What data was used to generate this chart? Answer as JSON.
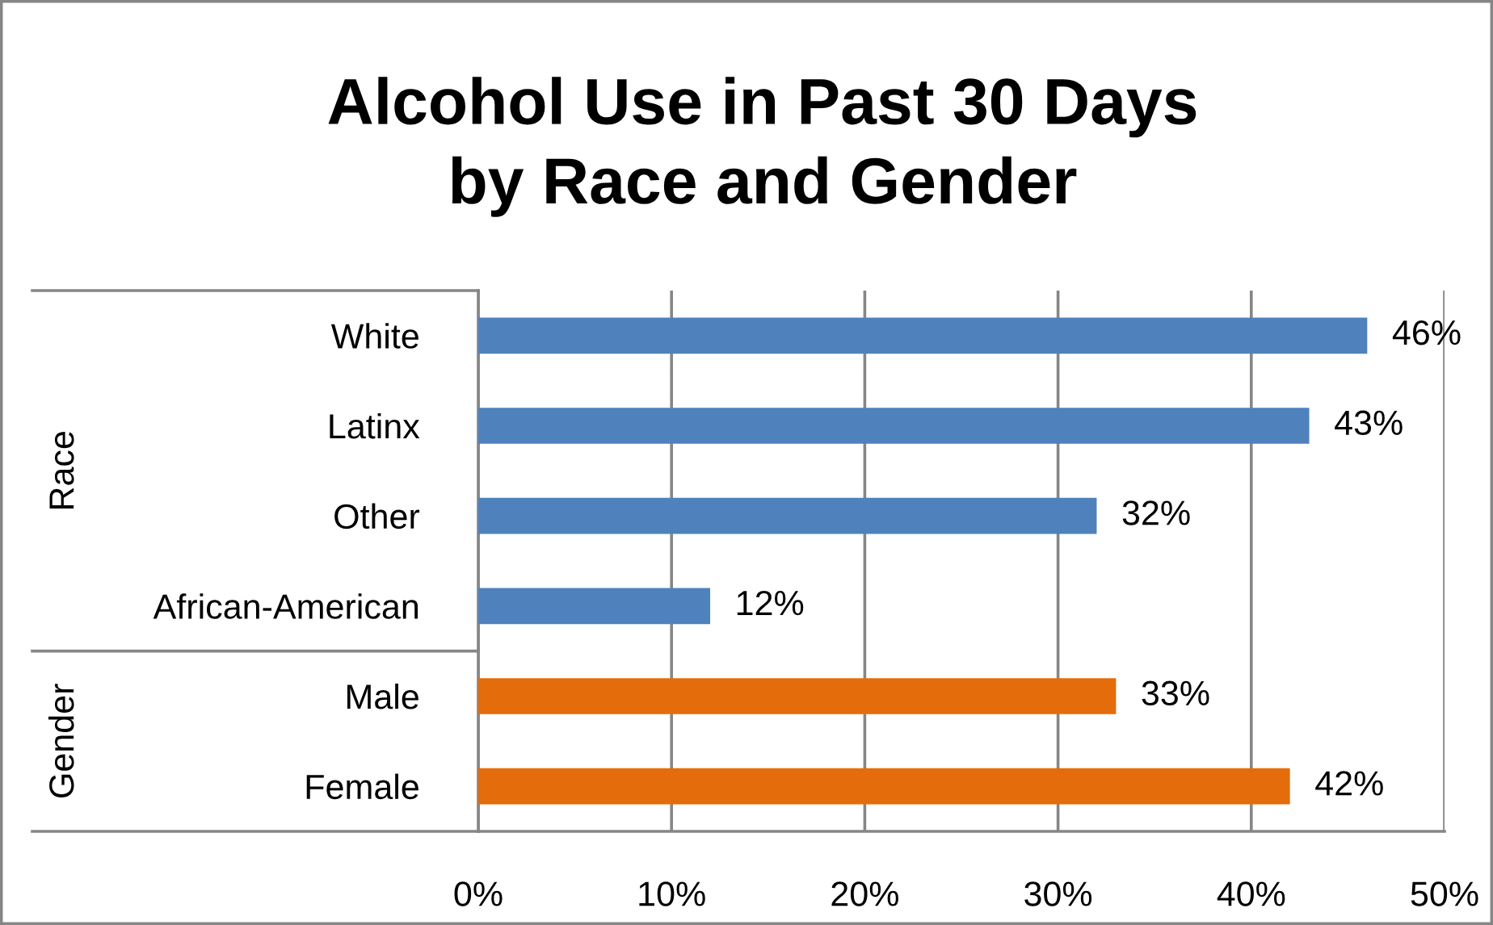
{
  "chart_data": {
    "type": "bar",
    "orientation": "horizontal",
    "title": "Alcohol Use in Past 30 Days\nby Race and Gender",
    "categories": [
      "White",
      "Latinx",
      "Other",
      "African-American",
      "Male",
      "Female"
    ],
    "series": [
      {
        "color": "#4f81bd",
        "values": [
          46,
          43,
          32,
          12,
          null,
          null
        ],
        "value_labels": [
          "46%",
          "43%",
          "32%",
          "12%",
          null,
          null
        ]
      },
      {
        "color": "#e46c0a",
        "values": [
          null,
          null,
          null,
          null,
          33,
          42
        ],
        "value_labels": [
          null,
          null,
          null,
          null,
          "33%",
          "42%"
        ]
      }
    ],
    "annotations": [
      "Race",
      "Gender"
    ],
    "xlim": [
      0,
      50
    ],
    "xticks": [
      {
        "value": 0,
        "label": "0%"
      },
      {
        "value": 10,
        "label": "10%"
      },
      {
        "value": 20,
        "label": "20%"
      },
      {
        "value": 30,
        "label": "30%"
      },
      {
        "value": 40,
        "label": "40%"
      },
      {
        "value": 50,
        "label": "50%"
      }
    ],
    "grid": "x"
  }
}
